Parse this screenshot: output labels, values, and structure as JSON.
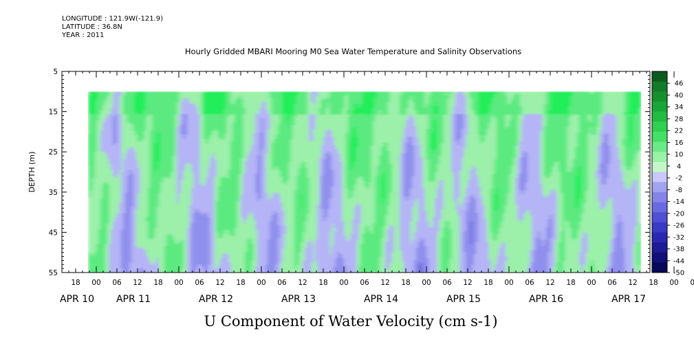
{
  "header": {
    "longitude": "LONGITUDE : 121.9W(-121.9)",
    "latitude": "LATITUDE : 36.8N",
    "year": "YEAR : 2011"
  },
  "chart_data": {
    "type": "heatmap",
    "title": "Hourly Gridded MBARI Mooring M0 Sea Water Temperature and Salinity Observations",
    "xlabel": "U Component of Water Velocity (cm s-1)",
    "ylabel": "DEPTH (m)",
    "y_ticks": [
      "5",
      "15",
      "25",
      "35",
      "45",
      "55"
    ],
    "ylim": [
      5,
      55
    ],
    "y_inverted": true,
    "data_depth_range": [
      10,
      55
    ],
    "x_hour_labels": [
      "18",
      "00",
      "06",
      "12",
      "18",
      "00",
      "06",
      "12",
      "18",
      "00",
      "06",
      "12",
      "18",
      "00",
      "06",
      "12",
      "18",
      "00",
      "06",
      "12",
      "18",
      "00",
      "06",
      "12",
      "18",
      "00",
      "06",
      "12",
      "18",
      "00",
      "06",
      "12"
    ],
    "x_date_labels": [
      "APR 10",
      "APR 11",
      "APR 12",
      "APR 13",
      "APR 14",
      "APR 15",
      "APR 16",
      "APR 17"
    ],
    "colorbar": {
      "labels": [
        "46",
        "40",
        "34",
        "28",
        "22",
        "16",
        "10",
        "4",
        "-2",
        "-8",
        "-14",
        "-20",
        "-26",
        "-32",
        "-38",
        "-44",
        "-50"
      ],
      "range": [
        -50,
        52
      ],
      "colors_top_to_bottom": [
        "#0e5a1e",
        "#137a2a",
        "#16902f",
        "#1aa637",
        "#22bc42",
        "#2fd04f",
        "#44e067",
        "#6aea86",
        "#98f2a8",
        "#c4f6c8",
        "#c8c8fa",
        "#a2a2f0",
        "#8585e8",
        "#6a6ae0",
        "#5050d4",
        "#3a3ac6",
        "#2828b0",
        "#1c1c96",
        "#101078",
        "#08085a"
      ]
    },
    "field_colors": {
      "green_strong": "#22ee5a",
      "green_mid": "#5cea80",
      "green_light": "#9cf0aa",
      "blue_light": "#b4b4f6",
      "blue_mid": "#8f8fee",
      "blue_dark": "#6a6ad8"
    }
  }
}
